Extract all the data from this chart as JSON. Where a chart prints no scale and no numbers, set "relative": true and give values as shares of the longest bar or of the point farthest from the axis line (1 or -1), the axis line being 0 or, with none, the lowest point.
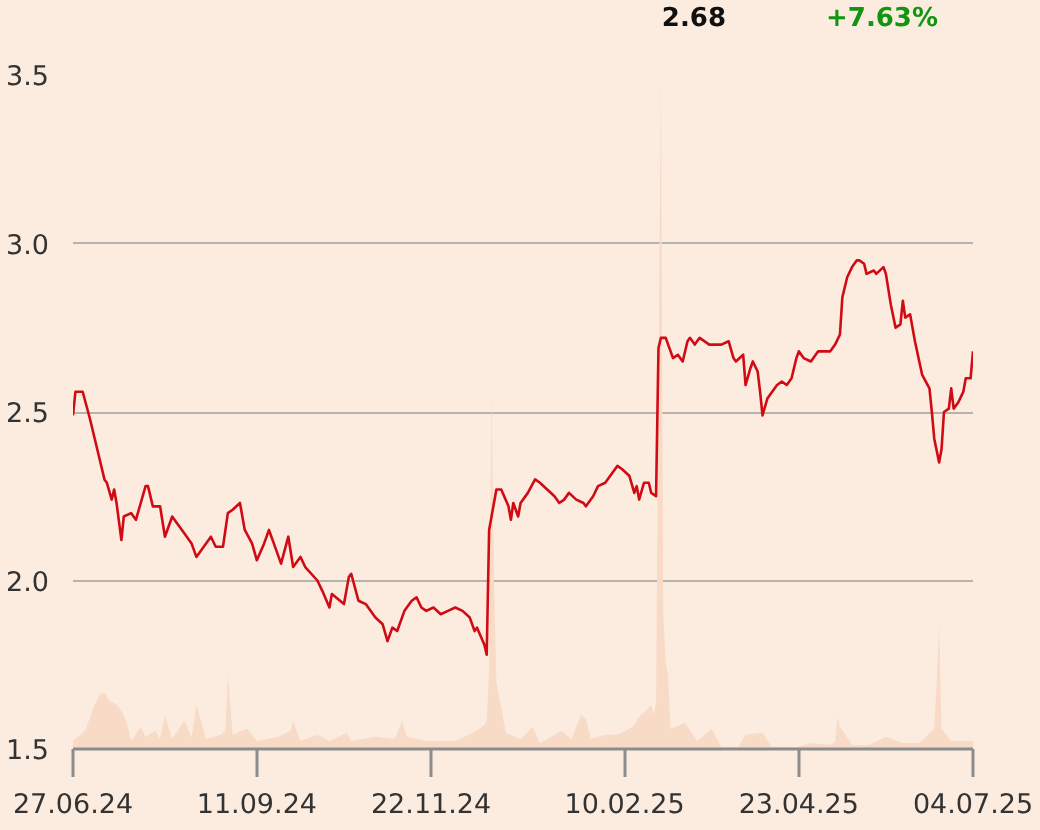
{
  "chart_data": [
    {
      "type": "line",
      "color": "#d10b14",
      "annotations": [
        "2.68",
        "+7.63%"
      ],
      "xlim": [
        "2024-06-27",
        "2025-07-04"
      ],
      "xticks": [
        {
          "value": "2024-06-27",
          "label": "27.06.24"
        },
        {
          "value": "2024-09-11",
          "label": "11.09.24"
        },
        {
          "value": "2024-11-22",
          "label": "22.11.24"
        },
        {
          "value": "2025-02-10",
          "label": "10.02.25"
        },
        {
          "value": "2025-04-23",
          "label": "23.04.25"
        },
        {
          "value": "2025-07-04",
          "label": "04.07.25"
        }
      ],
      "ylim": [
        1.5,
        3.5
      ],
      "yticks": [
        1.5,
        {
          "value": 2,
          "label": "2.0"
        },
        2.5,
        {
          "value": 3,
          "label": "3.0"
        },
        3.5
      ],
      "grid": "y",
      "x": [
        "2024-06-27",
        "2024-06-28",
        "2024-07-01",
        "2024-07-04",
        "2024-07-07",
        "2024-07-10",
        "2024-07-11",
        "2024-07-13",
        "2024-07-14",
        "2024-07-15",
        "2024-07-17",
        "2024-07-18",
        "2024-07-21",
        "2024-07-23",
        "2024-07-25",
        "2024-07-27",
        "2024-07-28",
        "2024-07-30",
        "2024-08-02",
        "2024-08-04",
        "2024-08-07",
        "2024-08-09",
        "2024-08-12",
        "2024-08-15",
        "2024-08-17",
        "2024-08-19",
        "2024-08-23",
        "2024-08-25",
        "2024-08-28",
        "2024-08-30",
        "2024-09-01",
        "2024-09-04",
        "2024-09-06",
        "2024-09-09",
        "2024-09-11",
        "2024-09-14",
        "2024-09-16",
        "2024-09-18",
        "2024-09-21",
        "2024-09-24",
        "2024-09-26",
        "2024-09-29",
        "2024-10-01",
        "2024-10-06",
        "2024-10-08",
        "2024-10-11",
        "2024-10-12",
        "2024-10-17",
        "2024-10-19",
        "2024-10-20",
        "2024-10-23",
        "2024-10-26",
        "2024-10-28",
        "2024-10-30",
        "2024-11-02",
        "2024-11-04",
        "2024-11-06",
        "2024-11-08",
        "2024-11-11",
        "2024-11-14",
        "2024-11-16",
        "2024-11-18",
        "2024-11-20",
        "2024-11-23",
        "2024-11-26",
        "2024-11-29",
        "2024-12-02",
        "2024-12-05",
        "2024-12-08",
        "2024-12-10",
        "2024-12-11",
        "2024-12-14",
        "2024-12-15",
        "2024-12-16",
        "2024-12-19",
        "2024-12-21",
        "2024-12-24",
        "2024-12-25",
        "2024-12-26",
        "2024-12-28",
        "2024-12-29",
        "2025-01-01",
        "2025-01-04",
        "2025-01-06",
        "2025-01-09",
        "2025-01-12",
        "2025-01-14",
        "2025-01-16",
        "2025-01-18",
        "2025-01-21",
        "2025-01-24",
        "2025-01-25",
        "2025-01-28",
        "2025-01-30",
        "2025-02-02",
        "2025-02-04",
        "2025-02-07",
        "2025-02-09",
        "2025-02-12",
        "2025-02-14",
        "2025-02-15",
        "2025-02-16",
        "2025-02-18",
        "2025-02-20",
        "2025-02-21",
        "2025-02-23",
        "2025-02-24",
        "2025-02-25",
        "2025-02-27",
        "2025-03-02",
        "2025-03-04",
        "2025-03-06",
        "2025-03-08",
        "2025-03-09",
        "2025-03-11",
        "2025-03-13",
        "2025-03-17",
        "2025-03-22",
        "2025-03-25",
        "2025-03-27",
        "2025-03-28",
        "2025-03-31",
        "2025-04-01",
        "2025-04-03",
        "2025-04-04",
        "2025-04-06",
        "2025-04-07",
        "2025-04-08",
        "2025-04-10",
        "2025-04-12",
        "2025-04-14",
        "2025-04-16",
        "2025-04-18",
        "2025-04-19",
        "2025-04-20",
        "2025-04-22",
        "2025-04-23",
        "2025-04-25",
        "2025-04-28",
        "2025-05-01",
        "2025-05-03",
        "2025-05-06",
        "2025-05-08",
        "2025-05-10",
        "2025-05-11",
        "2025-05-13",
        "2025-05-15",
        "2025-05-17",
        "2025-05-18",
        "2025-05-20",
        "2025-05-21",
        "2025-05-24",
        "2025-05-25",
        "2025-05-28",
        "2025-05-29",
        "2025-05-31",
        "2025-06-02",
        "2025-06-04",
        "2025-06-05",
        "2025-06-06",
        "2025-06-08",
        "2025-06-10",
        "2025-06-13",
        "2025-06-16",
        "2025-06-17",
        "2025-06-18",
        "2025-06-20",
        "2025-06-21",
        "2025-06-22",
        "2025-06-24",
        "2025-06-25",
        "2025-06-26",
        "2025-06-28",
        "2025-06-30",
        "2025-07-01",
        "2025-07-03",
        "2025-07-04"
      ],
      "values": [
        2.49,
        2.56,
        2.56,
        2.48,
        2.39,
        2.3,
        2.29,
        2.24,
        2.27,
        2.23,
        2.12,
        2.19,
        2.2,
        2.18,
        2.23,
        2.28,
        2.28,
        2.22,
        2.22,
        2.13,
        2.19,
        2.17,
        2.14,
        2.11,
        2.07,
        2.09,
        2.13,
        2.1,
        2.1,
        2.2,
        2.21,
        2.23,
        2.15,
        2.11,
        2.06,
        2.11,
        2.15,
        2.11,
        2.05,
        2.13,
        2.04,
        2.07,
        2.04,
        2.0,
        1.97,
        1.92,
        1.96,
        1.93,
        2.01,
        2.02,
        1.94,
        1.93,
        1.91,
        1.89,
        1.87,
        1.82,
        1.86,
        1.85,
        1.91,
        1.94,
        1.95,
        1.92,
        1.91,
        1.92,
        1.9,
        1.91,
        1.92,
        1.91,
        1.89,
        1.85,
        1.86,
        1.81,
        1.78,
        2.15,
        2.27,
        2.27,
        2.22,
        2.18,
        2.23,
        2.19,
        2.23,
        2.26,
        2.3,
        2.29,
        2.27,
        2.25,
        2.23,
        2.24,
        2.26,
        2.24,
        2.23,
        2.22,
        2.25,
        2.28,
        2.29,
        2.31,
        2.34,
        2.33,
        2.31,
        2.26,
        2.28,
        2.24,
        2.29,
        2.29,
        2.26,
        2.25,
        2.69,
        2.72,
        2.72,
        2.66,
        2.67,
        2.65,
        2.71,
        2.72,
        2.7,
        2.72,
        2.7,
        2.7,
        2.71,
        2.66,
        2.65,
        2.67,
        2.58,
        2.63,
        2.65,
        2.62,
        2.56,
        2.49,
        2.54,
        2.56,
        2.58,
        2.59,
        2.58,
        2.59,
        2.6,
        2.66,
        2.68,
        2.66,
        2.65,
        2.68,
        2.68,
        2.68,
        2.7,
        2.73,
        2.84,
        2.9,
        2.93,
        2.95,
        2.95,
        2.94,
        2.91,
        2.92,
        2.91,
        2.93,
        2.91,
        2.82,
        2.75,
        2.76,
        2.83,
        2.78,
        2.79,
        2.71,
        2.61,
        2.57,
        2.5,
        2.42,
        2.35,
        2.39,
        2.5,
        2.51,
        2.57,
        2.51,
        2.53,
        2.56,
        2.6,
        2.6,
        2.68
      ]
    },
    {
      "type": "area",
      "relative": true,
      "color": "#f8dbc6",
      "tick_labels": false,
      "xlim": [
        "2024-06-27",
        "2025-07-04"
      ],
      "x": [
        "2024-06-27",
        "2024-07-02",
        "2024-07-06",
        "2024-07-08",
        "2024-07-10",
        "2024-07-12",
        "2024-07-15",
        "2024-07-17",
        "2024-07-19",
        "2024-07-21",
        "2024-07-25",
        "2024-07-27",
        "2024-07-31",
        "2024-08-02",
        "2024-08-04",
        "2024-08-07",
        "2024-08-12",
        "2024-08-15",
        "2024-08-17",
        "2024-08-21",
        "2024-08-27",
        "2024-08-29",
        "2024-08-30",
        "2024-09-01",
        "2024-09-07",
        "2024-09-11",
        "2024-09-20",
        "2024-09-25",
        "2024-09-26",
        "2024-09-29",
        "2024-10-06",
        "2024-10-11",
        "2024-10-18",
        "2024-10-20",
        "2024-10-30",
        "2024-11-07",
        "2024-11-10",
        "2024-11-12",
        "2024-11-20",
        "2024-12-02",
        "2024-12-11",
        "2024-12-14",
        "2024-12-15",
        "2024-12-16",
        "2024-12-17",
        "2024-12-18",
        "2024-12-19",
        "2024-12-20",
        "2024-12-23",
        "2024-12-29",
        "2025-01-03",
        "2025-01-06",
        "2025-01-15",
        "2025-01-19",
        "2025-01-23",
        "2025-01-25",
        "2025-01-27",
        "2025-02-02",
        "2025-02-07",
        "2025-02-12",
        "2025-02-14",
        "2025-02-16",
        "2025-02-19",
        "2025-02-21",
        "2025-02-22",
        "2025-02-23",
        "2025-02-24",
        "2025-02-25",
        "2025-02-26",
        "2025-02-27",
        "2025-02-28",
        "2025-03-01",
        "2025-03-07",
        "2025-03-12",
        "2025-03-18",
        "2025-03-22",
        "2025-03-29",
        "2025-04-01",
        "2025-04-08",
        "2025-04-12",
        "2025-04-22",
        "2025-04-28",
        "2025-05-06",
        "2025-05-08",
        "2025-05-09",
        "2025-05-10",
        "2025-05-15",
        "2025-05-22",
        "2025-05-29",
        "2025-06-05",
        "2025-06-12",
        "2025-06-18",
        "2025-06-19",
        "2025-06-20",
        "2025-06-21",
        "2025-06-25",
        "2025-07-04"
      ],
      "values": [
        0.012,
        0.027,
        0.066,
        0.081,
        0.084,
        0.072,
        0.066,
        0.057,
        0.042,
        0.012,
        0.033,
        0.018,
        0.027,
        0.015,
        0.051,
        0.015,
        0.042,
        0.018,
        0.066,
        0.015,
        0.021,
        0.027,
        0.111,
        0.021,
        0.03,
        0.012,
        0.018,
        0.027,
        0.042,
        0.012,
        0.021,
        0.012,
        0.024,
        0.012,
        0.018,
        0.015,
        0.042,
        0.018,
        0.012,
        0.012,
        0.027,
        0.036,
        0.04,
        0.12,
        0.53,
        0.25,
        0.1,
        0.08,
        0.024,
        0.015,
        0.033,
        0.009,
        0.027,
        0.015,
        0.051,
        0.045,
        0.015,
        0.021,
        0.021,
        0.03,
        0.036,
        0.048,
        0.057,
        0.066,
        0.05,
        0.07,
        0.55,
        1.0,
        0.2,
        0.13,
        0.11,
        0.03,
        0.039,
        0.012,
        0.03,
        0.003,
        0.003,
        0.021,
        0.024,
        0.003,
        0.003,
        0.009,
        0.006,
        0.01,
        0.048,
        0.033,
        0.006,
        0.006,
        0.018,
        0.009,
        0.009,
        0.03,
        0.1,
        0.186,
        0.03,
        0.012,
        0.012
      ]
    }
  ]
}
